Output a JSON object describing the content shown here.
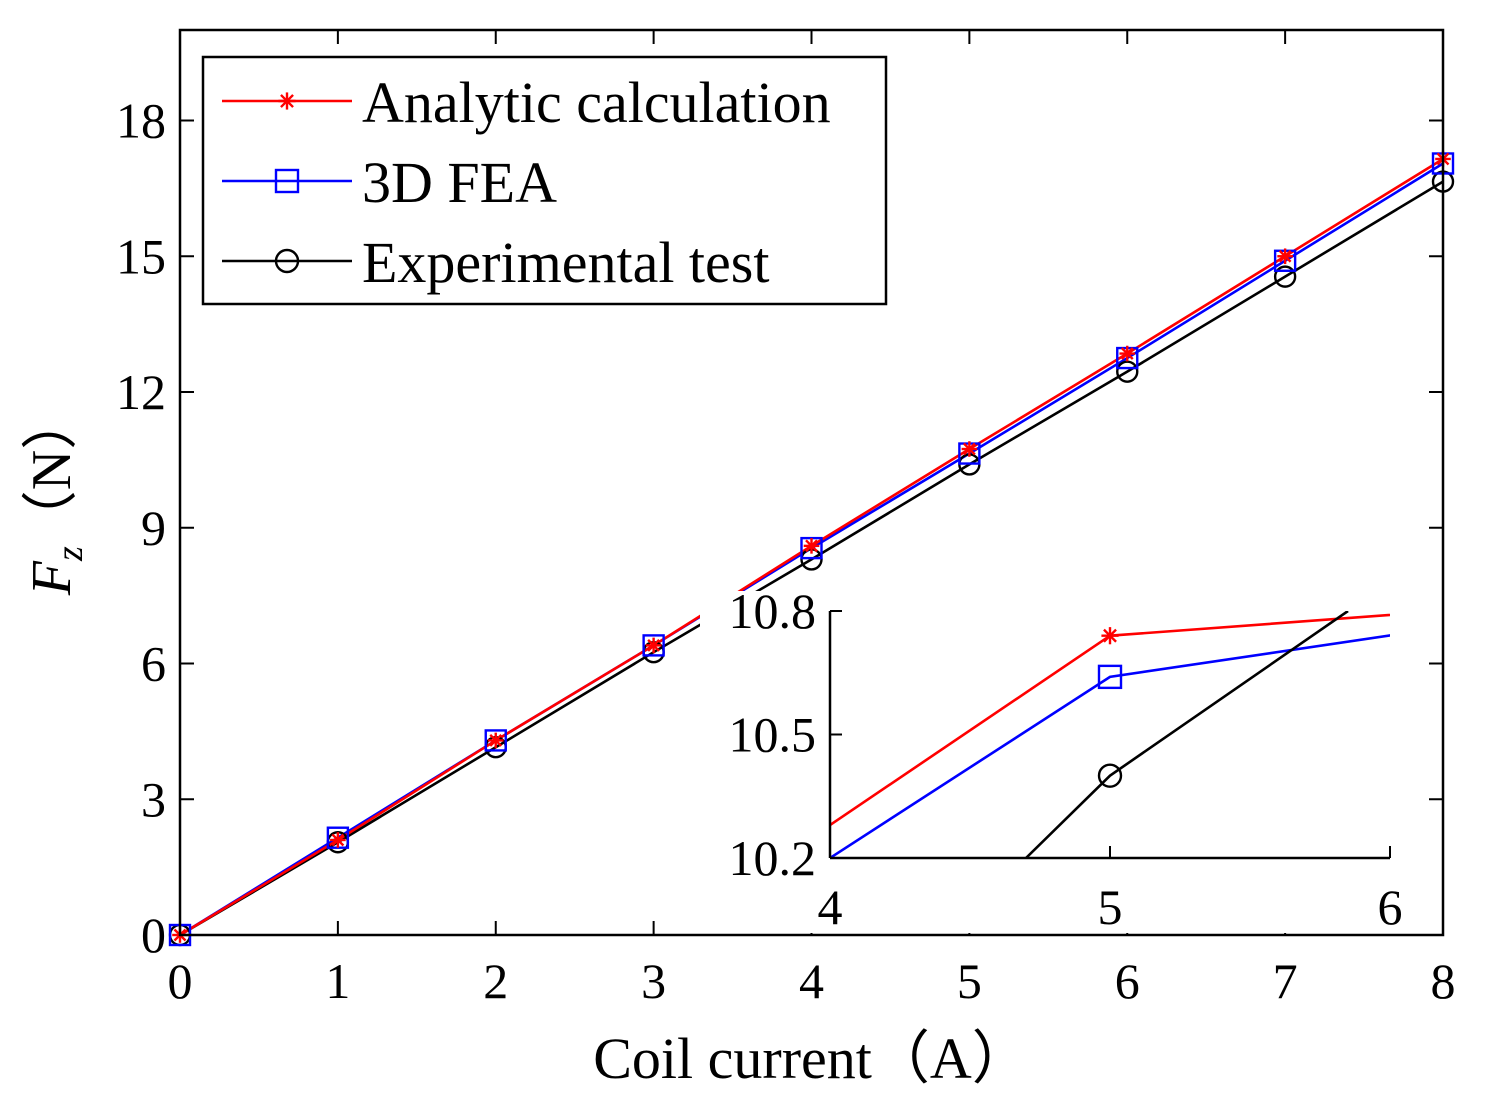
{
  "chart_data": [
    {
      "type": "line",
      "title": "",
      "xlabel": "Coil current（A）",
      "ylabel_main": "F",
      "ylabel_sub": "z",
      "ylabel_units": "（N）",
      "xlim": [
        0,
        8
      ],
      "ylim": [
        0,
        20
      ],
      "x_ticks": [
        0,
        1,
        2,
        3,
        4,
        5,
        6,
        7,
        8
      ],
      "x_tick_labels": [
        "0",
        "1",
        "2",
        "3",
        "4",
        "5",
        "6",
        "7",
        "8"
      ],
      "y_ticks": [
        0,
        3,
        6,
        9,
        12,
        15,
        18
      ],
      "y_tick_labels": [
        "0",
        "3",
        "6",
        "9",
        "12",
        "15",
        "18"
      ],
      "grid": false,
      "legend": "top-left",
      "x": [
        0,
        1,
        2,
        3,
        4,
        5,
        6,
        7,
        8
      ],
      "series": [
        {
          "name": "Analytic calculation",
          "color": "#ff0000",
          "marker": "asterisk",
          "values": [
            0,
            2.1,
            4.3,
            6.4,
            8.6,
            10.74,
            12.85,
            15.0,
            17.15
          ]
        },
        {
          "name": "3D FEA",
          "color": "#0000ff",
          "marker": "square",
          "values": [
            0,
            2.15,
            4.3,
            6.4,
            8.55,
            10.64,
            12.75,
            14.9,
            17.05
          ]
        },
        {
          "name": "Experimental test",
          "color": "#000000",
          "marker": "circle",
          "values": [
            0,
            2.05,
            4.15,
            6.25,
            8.3,
            10.4,
            12.45,
            14.55,
            16.65
          ]
        }
      ]
    },
    {
      "type": "line",
      "title": "",
      "xlabel": "",
      "ylabel": "",
      "xlim": [
        4,
        6
      ],
      "ylim": [
        10.2,
        10.8
      ],
      "x_ticks": [
        4,
        5,
        6
      ],
      "x_tick_labels": [
        "4",
        "5",
        "6"
      ],
      "y_ticks": [
        10.2,
        10.5,
        10.8
      ],
      "y_tick_labels": [
        "10.2",
        "10.5",
        "10.8"
      ],
      "grid": false,
      "series": [
        {
          "name": "Analytic calculation",
          "color": "#ff0000",
          "marker": "asterisk",
          "points": [
            [
              4,
              10.28
            ],
            [
              5,
              10.74
            ],
            [
              6.19,
              10.8
            ]
          ],
          "marker_points": [
            [
              5,
              10.74
            ]
          ]
        },
        {
          "name": "3D FEA",
          "color": "#0000ff",
          "marker": "square",
          "points": [
            [
              4,
              10.2
            ],
            [
              5,
              10.64
            ],
            [
              6.59,
              10.8
            ]
          ],
          "marker_points": [
            [
              5,
              10.64
            ]
          ]
        },
        {
          "name": "Experimental test",
          "color": "#000000",
          "marker": "circle",
          "points": [
            [
              4.7,
              10.2
            ],
            [
              5,
              10.4
            ],
            [
              5.85,
              10.8
            ]
          ],
          "marker_points": [
            [
              5,
              10.4
            ]
          ]
        }
      ]
    }
  ]
}
